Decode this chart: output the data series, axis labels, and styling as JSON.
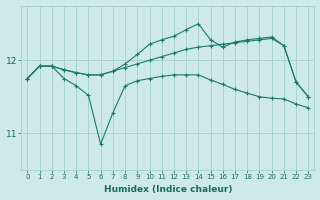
{
  "xlabel": "Humidex (Indice chaleur)",
  "x": [
    0,
    1,
    2,
    3,
    4,
    5,
    6,
    7,
    8,
    9,
    10,
    11,
    12,
    13,
    14,
    15,
    16,
    17,
    18,
    19,
    20,
    21,
    22,
    23
  ],
  "line1": [
    11.75,
    11.92,
    11.92,
    11.87,
    11.83,
    11.8,
    11.8,
    11.85,
    11.9,
    11.95,
    12.0,
    12.05,
    12.1,
    12.15,
    12.18,
    12.2,
    12.22,
    12.24,
    12.26,
    12.28,
    12.3,
    12.2,
    11.7,
    11.5
  ],
  "line2": [
    11.75,
    11.92,
    11.92,
    11.87,
    11.83,
    11.8,
    11.8,
    11.85,
    11.95,
    12.08,
    12.22,
    12.28,
    12.33,
    12.42,
    12.5,
    12.28,
    12.18,
    12.25,
    12.28,
    12.3,
    12.32,
    12.2,
    11.7,
    11.5
  ],
  "line3": [
    11.75,
    11.92,
    11.92,
    11.75,
    11.65,
    11.52,
    10.85,
    11.28,
    11.65,
    11.72,
    11.75,
    11.78,
    11.8,
    11.8,
    11.8,
    11.73,
    11.67,
    11.6,
    11.55,
    11.5,
    11.48,
    11.47,
    11.4,
    11.35
  ],
  "line_color": "#1a7a6e",
  "bg_color": "#ceeae8",
  "grid_color": "#aad4d0",
  "tick_label_color": "#1a6b60",
  "yticks": [
    11,
    12
  ],
  "ylim": [
    10.5,
    12.75
  ],
  "xlim": [
    -0.5,
    23.5
  ]
}
